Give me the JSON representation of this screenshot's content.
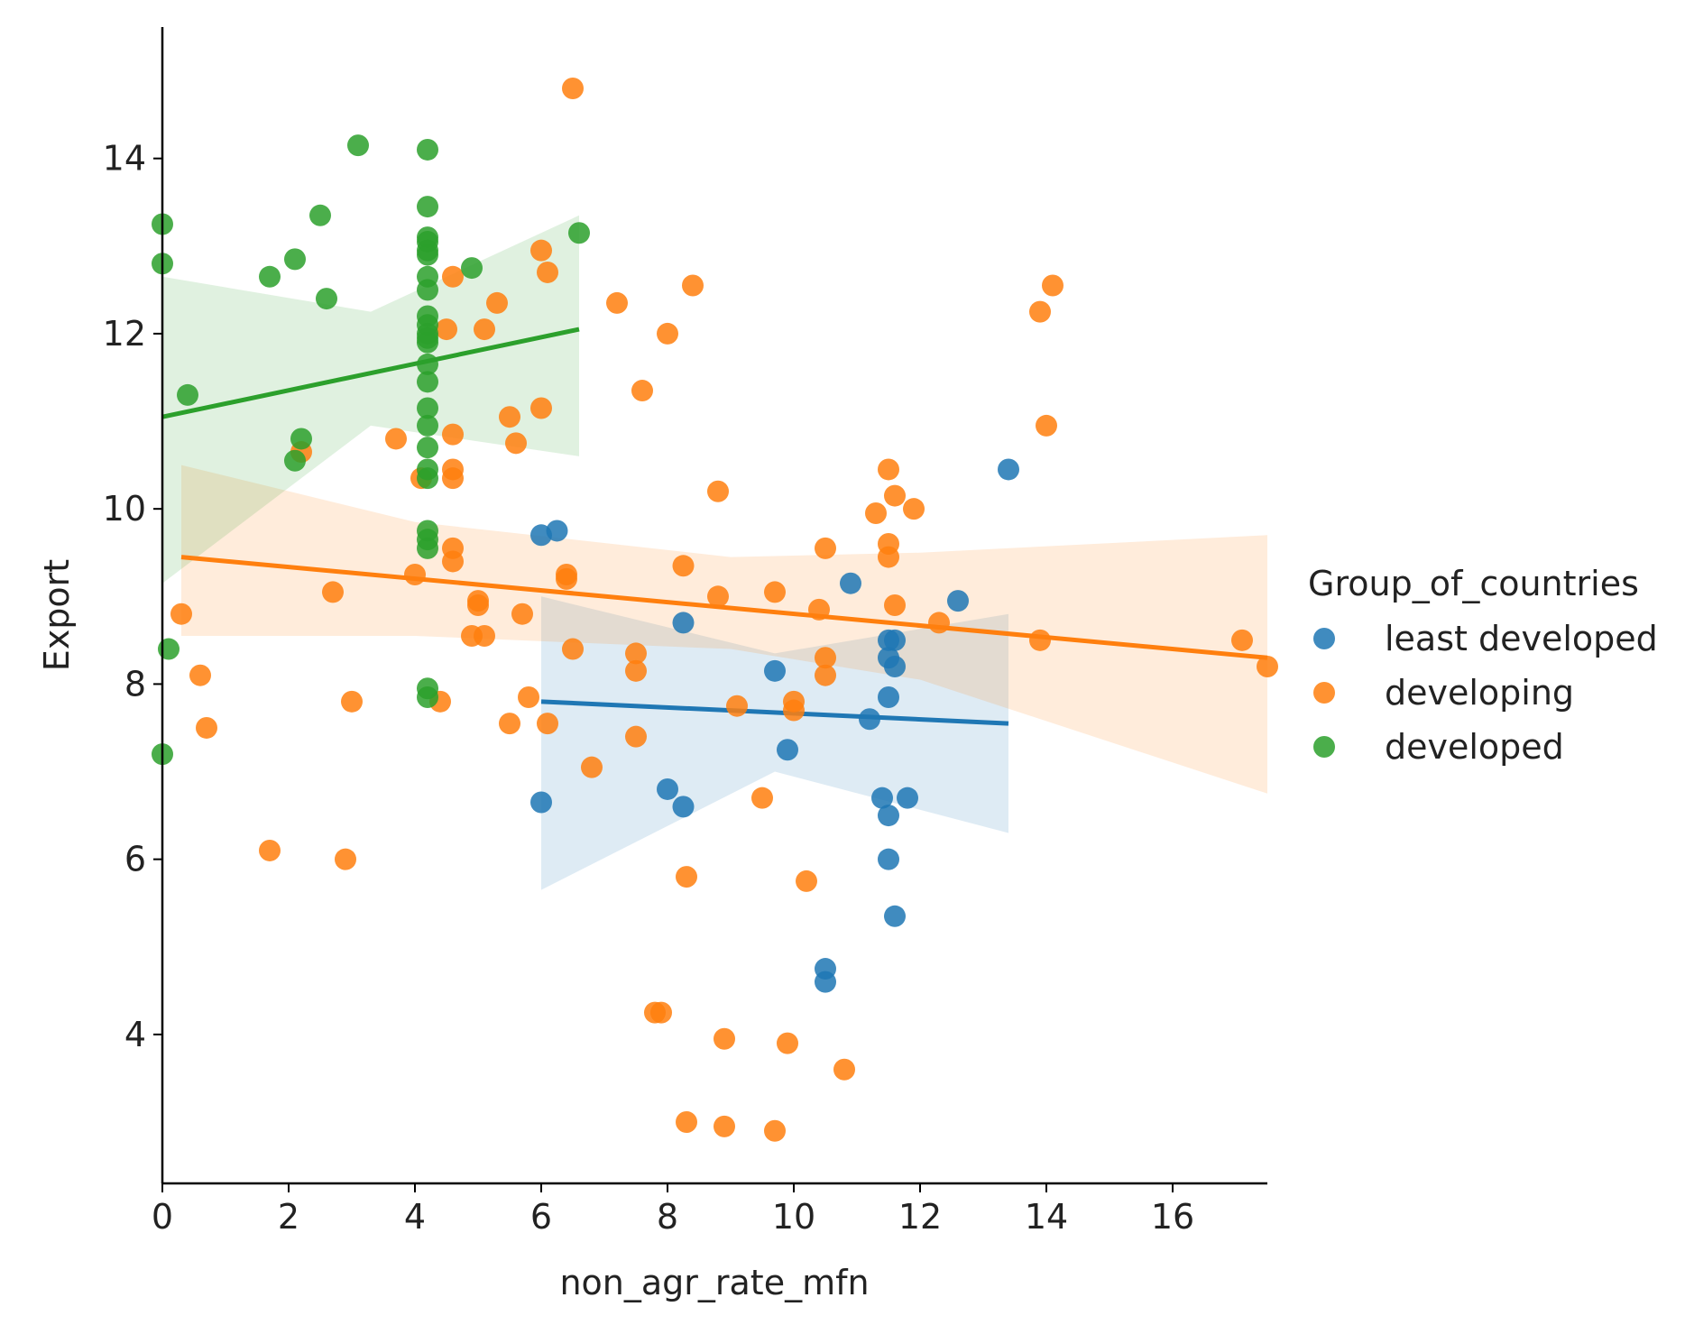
{
  "chart_data": {
    "type": "scatter",
    "title": "",
    "xlabel": "non_agr_rate_mfn",
    "ylabel": "Export",
    "xlim": [
      0,
      17.5
    ],
    "ylim": [
      2.3,
      15.5
    ],
    "xticks": [
      0,
      2,
      4,
      6,
      8,
      10,
      12,
      14,
      16
    ],
    "yticks": [
      4,
      6,
      8,
      10,
      12,
      14
    ],
    "grid": false,
    "legend": {
      "title": "Group_of_countries",
      "placement": "right"
    },
    "series": [
      {
        "name": "least developed",
        "color": "#1f77b4",
        "points": [
          [
            6.0,
            9.7
          ],
          [
            6.25,
            9.75
          ],
          [
            6.0,
            6.65
          ],
          [
            8.25,
            8.7
          ],
          [
            8.0,
            6.8
          ],
          [
            8.25,
            6.6
          ],
          [
            9.7,
            8.15
          ],
          [
            9.9,
            7.25
          ],
          [
            10.5,
            4.75
          ],
          [
            10.5,
            4.6
          ],
          [
            10.9,
            9.15
          ],
          [
            11.2,
            7.6
          ],
          [
            11.5,
            8.5
          ],
          [
            11.5,
            8.3
          ],
          [
            11.5,
            7.85
          ],
          [
            11.4,
            6.7
          ],
          [
            11.5,
            6.5
          ],
          [
            11.5,
            6.0
          ],
          [
            11.6,
            5.35
          ],
          [
            11.8,
            6.7
          ],
          [
            11.6,
            8.5
          ],
          [
            11.6,
            8.2
          ],
          [
            12.6,
            8.95
          ],
          [
            13.4,
            10.45
          ]
        ],
        "fit": {
          "x": [
            6.0,
            13.4
          ],
          "y": [
            7.8,
            7.55
          ]
        },
        "ci": {
          "x": [
            6.0,
            9.7,
            13.4
          ],
          "upper": [
            9.0,
            8.35,
            8.8
          ],
          "lower": [
            5.65,
            7.0,
            6.3
          ]
        }
      },
      {
        "name": "developing",
        "color": "#ff7f0e",
        "points": [
          [
            0.3,
            8.8
          ],
          [
            0.6,
            8.1
          ],
          [
            0.7,
            7.5
          ],
          [
            1.7,
            6.1
          ],
          [
            2.2,
            10.65
          ],
          [
            2.7,
            9.05
          ],
          [
            2.9,
            6.0
          ],
          [
            3.0,
            7.8
          ],
          [
            3.7,
            10.8
          ],
          [
            4.0,
            9.25
          ],
          [
            4.1,
            10.35
          ],
          [
            4.4,
            7.8
          ],
          [
            4.5,
            12.05
          ],
          [
            4.6,
            12.65
          ],
          [
            4.6,
            10.85
          ],
          [
            4.6,
            10.45
          ],
          [
            4.6,
            10.35
          ],
          [
            4.6,
            9.55
          ],
          [
            4.6,
            9.4
          ],
          [
            4.9,
            8.55
          ],
          [
            5.0,
            8.95
          ],
          [
            5.0,
            8.9
          ],
          [
            5.1,
            8.55
          ],
          [
            5.1,
            12.05
          ],
          [
            5.3,
            12.35
          ],
          [
            5.5,
            11.05
          ],
          [
            5.5,
            7.55
          ],
          [
            5.6,
            10.75
          ],
          [
            5.7,
            8.8
          ],
          [
            5.8,
            7.85
          ],
          [
            6.0,
            12.95
          ],
          [
            6.0,
            11.15
          ],
          [
            6.1,
            12.7
          ],
          [
            6.1,
            7.55
          ],
          [
            6.4,
            9.25
          ],
          [
            6.4,
            9.2
          ],
          [
            6.5,
            8.4
          ],
          [
            6.5,
            14.8
          ],
          [
            6.8,
            7.05
          ],
          [
            7.2,
            12.35
          ],
          [
            7.5,
            8.35
          ],
          [
            7.5,
            8.15
          ],
          [
            7.5,
            7.4
          ],
          [
            7.6,
            11.35
          ],
          [
            7.8,
            4.25
          ],
          [
            7.9,
            4.25
          ],
          [
            8.0,
            12.0
          ],
          [
            8.25,
            9.35
          ],
          [
            8.3,
            5.8
          ],
          [
            8.3,
            3.0
          ],
          [
            8.4,
            12.55
          ],
          [
            8.8,
            10.2
          ],
          [
            8.8,
            9.0
          ],
          [
            8.9,
            3.95
          ],
          [
            8.9,
            2.95
          ],
          [
            9.1,
            7.75
          ],
          [
            9.5,
            6.7
          ],
          [
            9.7,
            9.05
          ],
          [
            9.7,
            2.9
          ],
          [
            9.9,
            3.9
          ],
          [
            10.0,
            7.8
          ],
          [
            10.0,
            7.7
          ],
          [
            10.2,
            5.75
          ],
          [
            10.4,
            8.85
          ],
          [
            10.5,
            9.55
          ],
          [
            10.5,
            8.3
          ],
          [
            10.5,
            8.1
          ],
          [
            10.8,
            3.6
          ],
          [
            11.3,
            9.95
          ],
          [
            11.5,
            10.45
          ],
          [
            11.5,
            9.6
          ],
          [
            11.5,
            9.45
          ],
          [
            11.6,
            10.15
          ],
          [
            11.6,
            8.9
          ],
          [
            11.9,
            10.0
          ],
          [
            12.3,
            8.7
          ],
          [
            13.9,
            12.25
          ],
          [
            13.9,
            8.5
          ],
          [
            14.0,
            10.95
          ],
          [
            14.1,
            12.55
          ],
          [
            17.1,
            8.5
          ],
          [
            17.5,
            8.2
          ]
        ],
        "fit": {
          "x": [
            0.3,
            17.5
          ],
          "y": [
            9.45,
            8.3
          ]
        },
        "ci": {
          "x": [
            0.3,
            4.0,
            9.0,
            12.0,
            17.5
          ],
          "upper": [
            10.5,
            9.85,
            9.45,
            9.5,
            9.7
          ],
          "lower": [
            8.55,
            8.55,
            8.4,
            8.05,
            6.75
          ]
        }
      },
      {
        "name": "developed",
        "color": "#2ca02c",
        "points": [
          [
            0.0,
            13.25
          ],
          [
            0.0,
            12.8
          ],
          [
            0.0,
            7.2
          ],
          [
            0.1,
            8.4
          ],
          [
            0.4,
            11.3
          ],
          [
            1.7,
            12.65
          ],
          [
            2.1,
            12.85
          ],
          [
            2.1,
            10.55
          ],
          [
            2.2,
            10.8
          ],
          [
            2.5,
            13.35
          ],
          [
            2.6,
            12.4
          ],
          [
            3.1,
            14.15
          ],
          [
            4.2,
            14.1
          ],
          [
            4.2,
            13.45
          ],
          [
            4.2,
            13.1
          ],
          [
            4.2,
            13.05
          ],
          [
            4.2,
            12.95
          ],
          [
            4.2,
            12.9
          ],
          [
            4.2,
            12.65
          ],
          [
            4.2,
            12.5
          ],
          [
            4.2,
            12.2
          ],
          [
            4.2,
            12.1
          ],
          [
            4.2,
            12.0
          ],
          [
            4.2,
            11.95
          ],
          [
            4.2,
            11.9
          ],
          [
            4.2,
            11.65
          ],
          [
            4.2,
            11.45
          ],
          [
            4.2,
            11.15
          ],
          [
            4.2,
            10.95
          ],
          [
            4.2,
            10.7
          ],
          [
            4.2,
            10.45
          ],
          [
            4.2,
            10.35
          ],
          [
            4.2,
            9.75
          ],
          [
            4.2,
            9.65
          ],
          [
            4.2,
            9.55
          ],
          [
            4.2,
            7.95
          ],
          [
            4.2,
            7.85
          ],
          [
            4.9,
            12.75
          ],
          [
            6.6,
            13.15
          ]
        ],
        "fit": {
          "x": [
            0.0,
            6.6
          ],
          "y": [
            11.05,
            12.05
          ]
        },
        "ci": {
          "x": [
            0.0,
            3.3,
            6.6
          ],
          "upper": [
            12.65,
            12.25,
            13.35
          ],
          "lower": [
            9.15,
            10.95,
            10.6
          ]
        }
      }
    ]
  }
}
